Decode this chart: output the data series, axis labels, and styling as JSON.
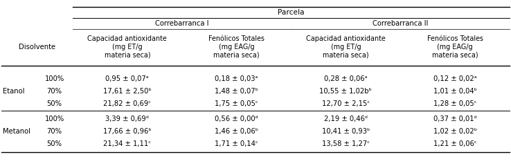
{
  "title": "Parcela",
  "correbar1": "Correbarranca I",
  "correbar2": "Correbarranca II",
  "disolvente_label": "Disolvente",
  "col_headers": [
    "Capacidad antioxidante\n(mg ET/g\nmateria seca)",
    "Fenólicos Totales\n(mg EAG/g\nmateria seca)",
    "Capacidad antioxidante\n(mg ET/g\nmateria seca)",
    "Fenólicos Totales\n(mg EAG/g\nmateria seca)"
  ],
  "row_groups": [
    {
      "group": "Etanol",
      "rows": [
        [
          "100%",
          "0,95 ± 0,07ᵃ",
          "0,18 ± 0,03ᵃ",
          "0,28 ± 0,06ᵃ",
          "0,12 ± 0,02ᵃ"
        ],
        [
          "70%",
          "17,61 ± 2,50ᵇ",
          "1,48 ± 0,07ᵇ",
          "10,55 ± 1,02bᵇ",
          "1,01 ± 0,04ᵇ"
        ],
        [
          "50%",
          "21,82 ± 0,69ᶜ",
          "1,75 ± 0,05ᶜ",
          "12,70 ± 2,15ᶜ",
          "1,28 ± 0,05ᶜ"
        ]
      ]
    },
    {
      "group": "Metanol",
      "rows": [
        [
          "100%",
          "3,39 ± 0,69ᵈ",
          "0,56 ± 0,00ᵈ",
          "2,19 ± 0,46ᵈ",
          "0,37 ± 0,01ᵈ"
        ],
        [
          "70%",
          "17,66 ± 0,96ᵇ",
          "1,46 ± 0,06ᵇ",
          "10,41 ± 0,93ᵇ",
          "1,02 ± 0,02ᵇ"
        ],
        [
          "50%",
          "21,34 ± 1,11ᶜ",
          "1,71 ± 0,14ᶜ",
          "13,58 ± 1,27ᶜ",
          "1,21 ± 0,06ᶜ"
        ]
      ]
    }
  ],
  "fs": 7.2,
  "bg_color": "white",
  "line_color": "black"
}
